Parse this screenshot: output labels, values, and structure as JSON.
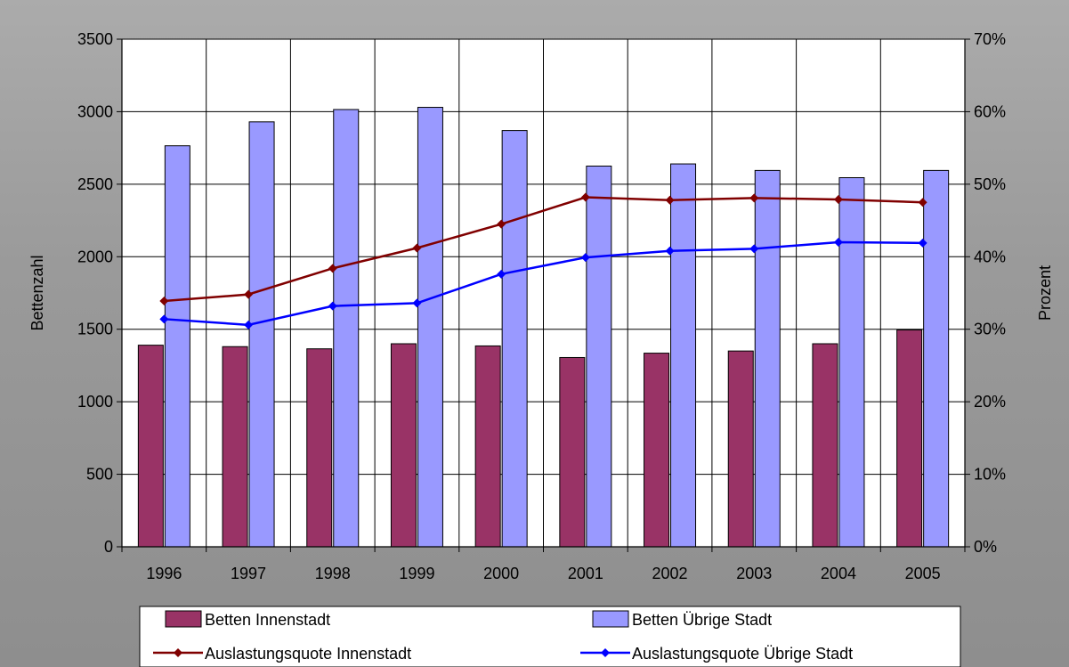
{
  "chart_data": {
    "type": "bar",
    "categories": [
      "1996",
      "1997",
      "1998",
      "1999",
      "2000",
      "2001",
      "2002",
      "2003",
      "2004",
      "2005"
    ],
    "ylabel": "Bettenzahl",
    "y2label": "Prozent",
    "ylim": [
      0,
      3500
    ],
    "y2lim": [
      0,
      70
    ],
    "yticks": [
      "0",
      "500",
      "1000",
      "1500",
      "2000",
      "2500",
      "3000",
      "3500"
    ],
    "y2ticks": [
      "0%",
      "10%",
      "20%",
      "30%",
      "40%",
      "50%",
      "60%",
      "70%"
    ],
    "grid": true,
    "legend_position": "bottom",
    "series": [
      {
        "name": "Betten Innenstadt",
        "kind": "bar",
        "axis": "left",
        "color": "#993366",
        "values": [
          1390,
          1380,
          1365,
          1400,
          1385,
          1305,
          1335,
          1350,
          1400,
          1495
        ]
      },
      {
        "name": "Betten Übrige Stadt",
        "kind": "bar",
        "axis": "left",
        "color": "#9999ff",
        "values": [
          2765,
          2930,
          3015,
          3030,
          2870,
          2625,
          2640,
          2595,
          2545,
          2595
        ]
      },
      {
        "name": "Auslastungsquote Innenstadt",
        "kind": "line",
        "axis": "right",
        "color": "#800000",
        "values": [
          33.9,
          34.8,
          38.4,
          41.2,
          44.5,
          48.2,
          47.8,
          48.1,
          47.9,
          47.5
        ]
      },
      {
        "name": "Auslastungsquote Übrige Stadt",
        "kind": "line",
        "axis": "right",
        "color": "#0000ff",
        "values": [
          31.4,
          30.6,
          33.2,
          33.6,
          37.6,
          39.9,
          40.8,
          41.1,
          42.0,
          41.9
        ]
      }
    ]
  }
}
